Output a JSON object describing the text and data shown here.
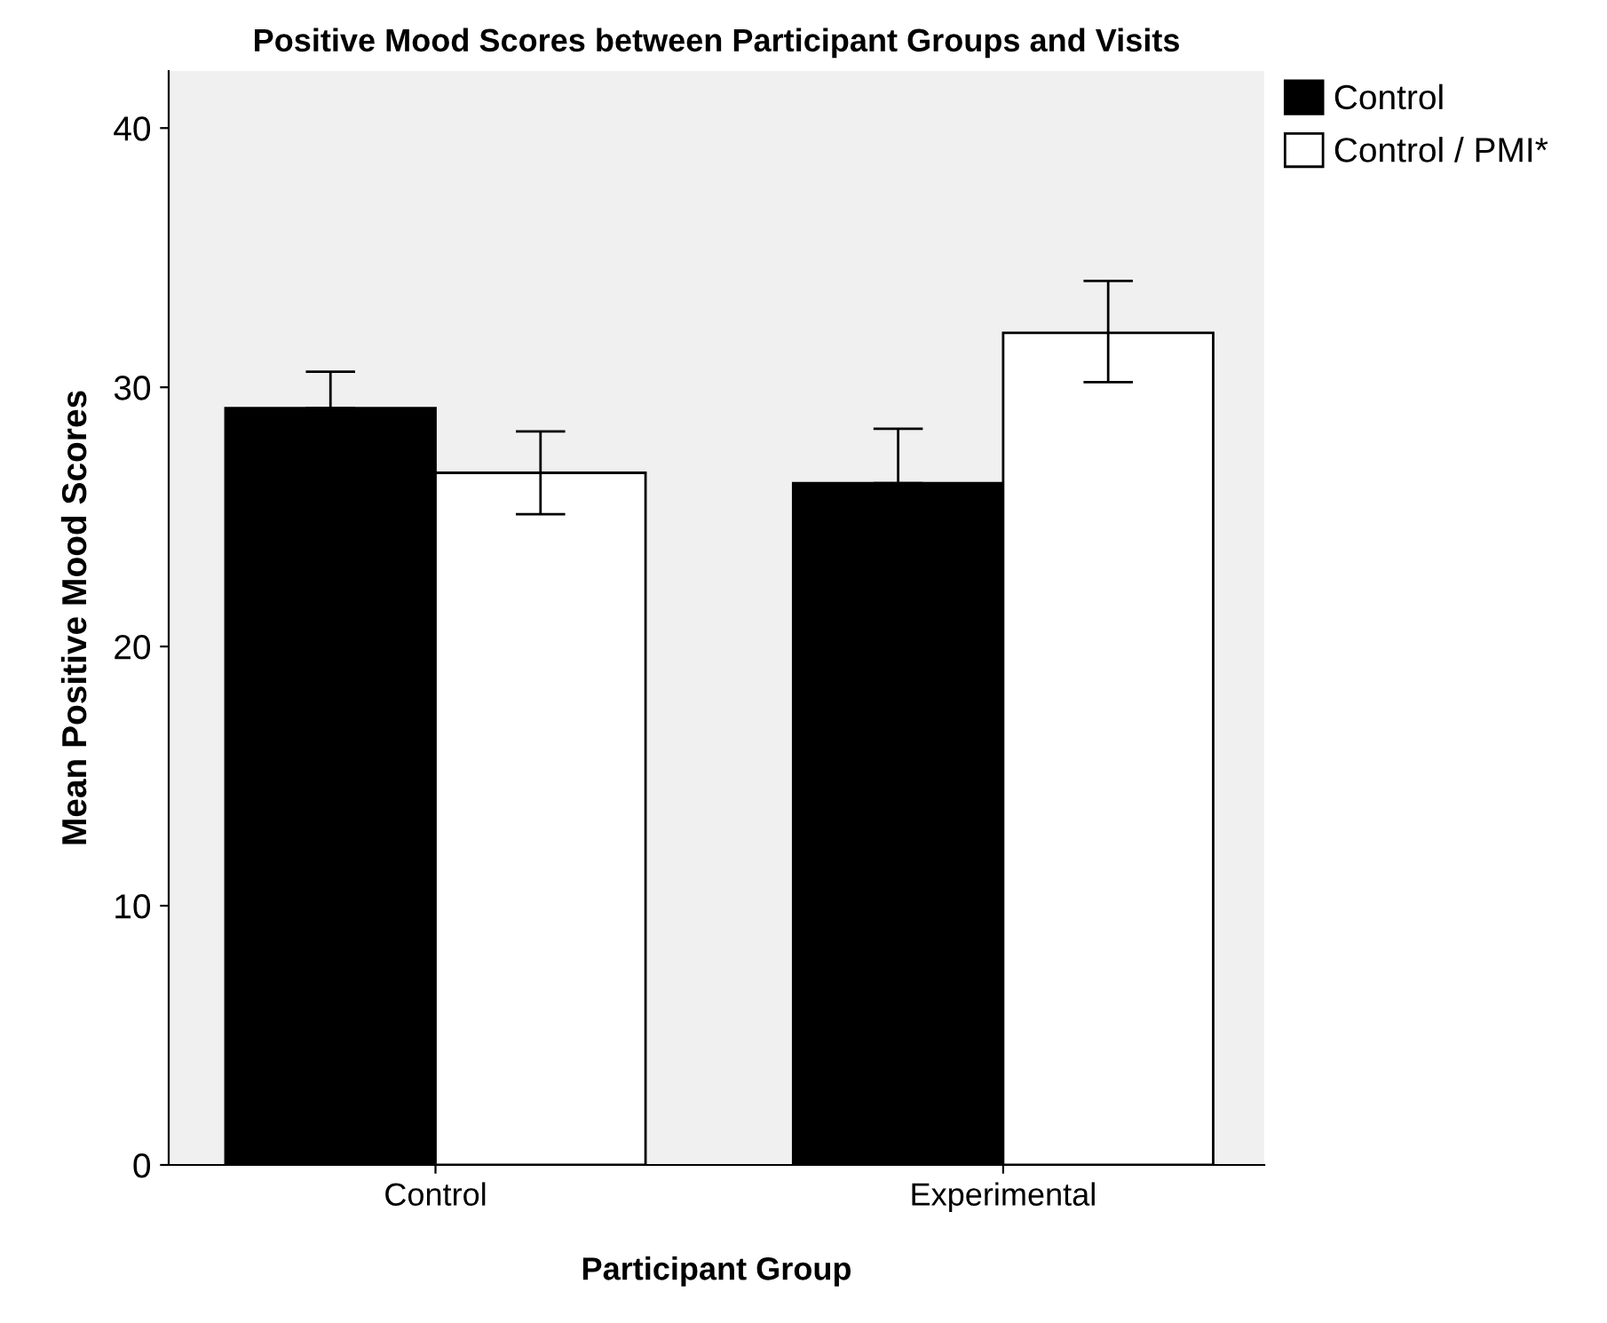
{
  "chart_data": {
    "type": "bar",
    "title": "Positive Mood Scores between Participant Groups and Visits",
    "xlabel": "Participant Group",
    "ylabel": "Mean Positive Mood Scores",
    "categories": [
      "Control",
      "Experimental"
    ],
    "series": [
      {
        "name": "Control",
        "color": "#000000",
        "values": [
          29.2,
          26.3
        ],
        "errors": [
          [
            29.2,
            30.6
          ],
          [
            26.3,
            28.4
          ]
        ]
      },
      {
        "name": "Control / PMI*",
        "color": "#ffffff",
        "values": [
          26.7,
          32.1
        ],
        "errors": [
          [
            25.1,
            28.3
          ],
          [
            30.2,
            34.1
          ]
        ]
      }
    ],
    "ylim": [
      0,
      42.2
    ],
    "yticks": [
      0,
      10,
      20,
      30,
      40
    ],
    "grid": false,
    "legend": "top right"
  }
}
